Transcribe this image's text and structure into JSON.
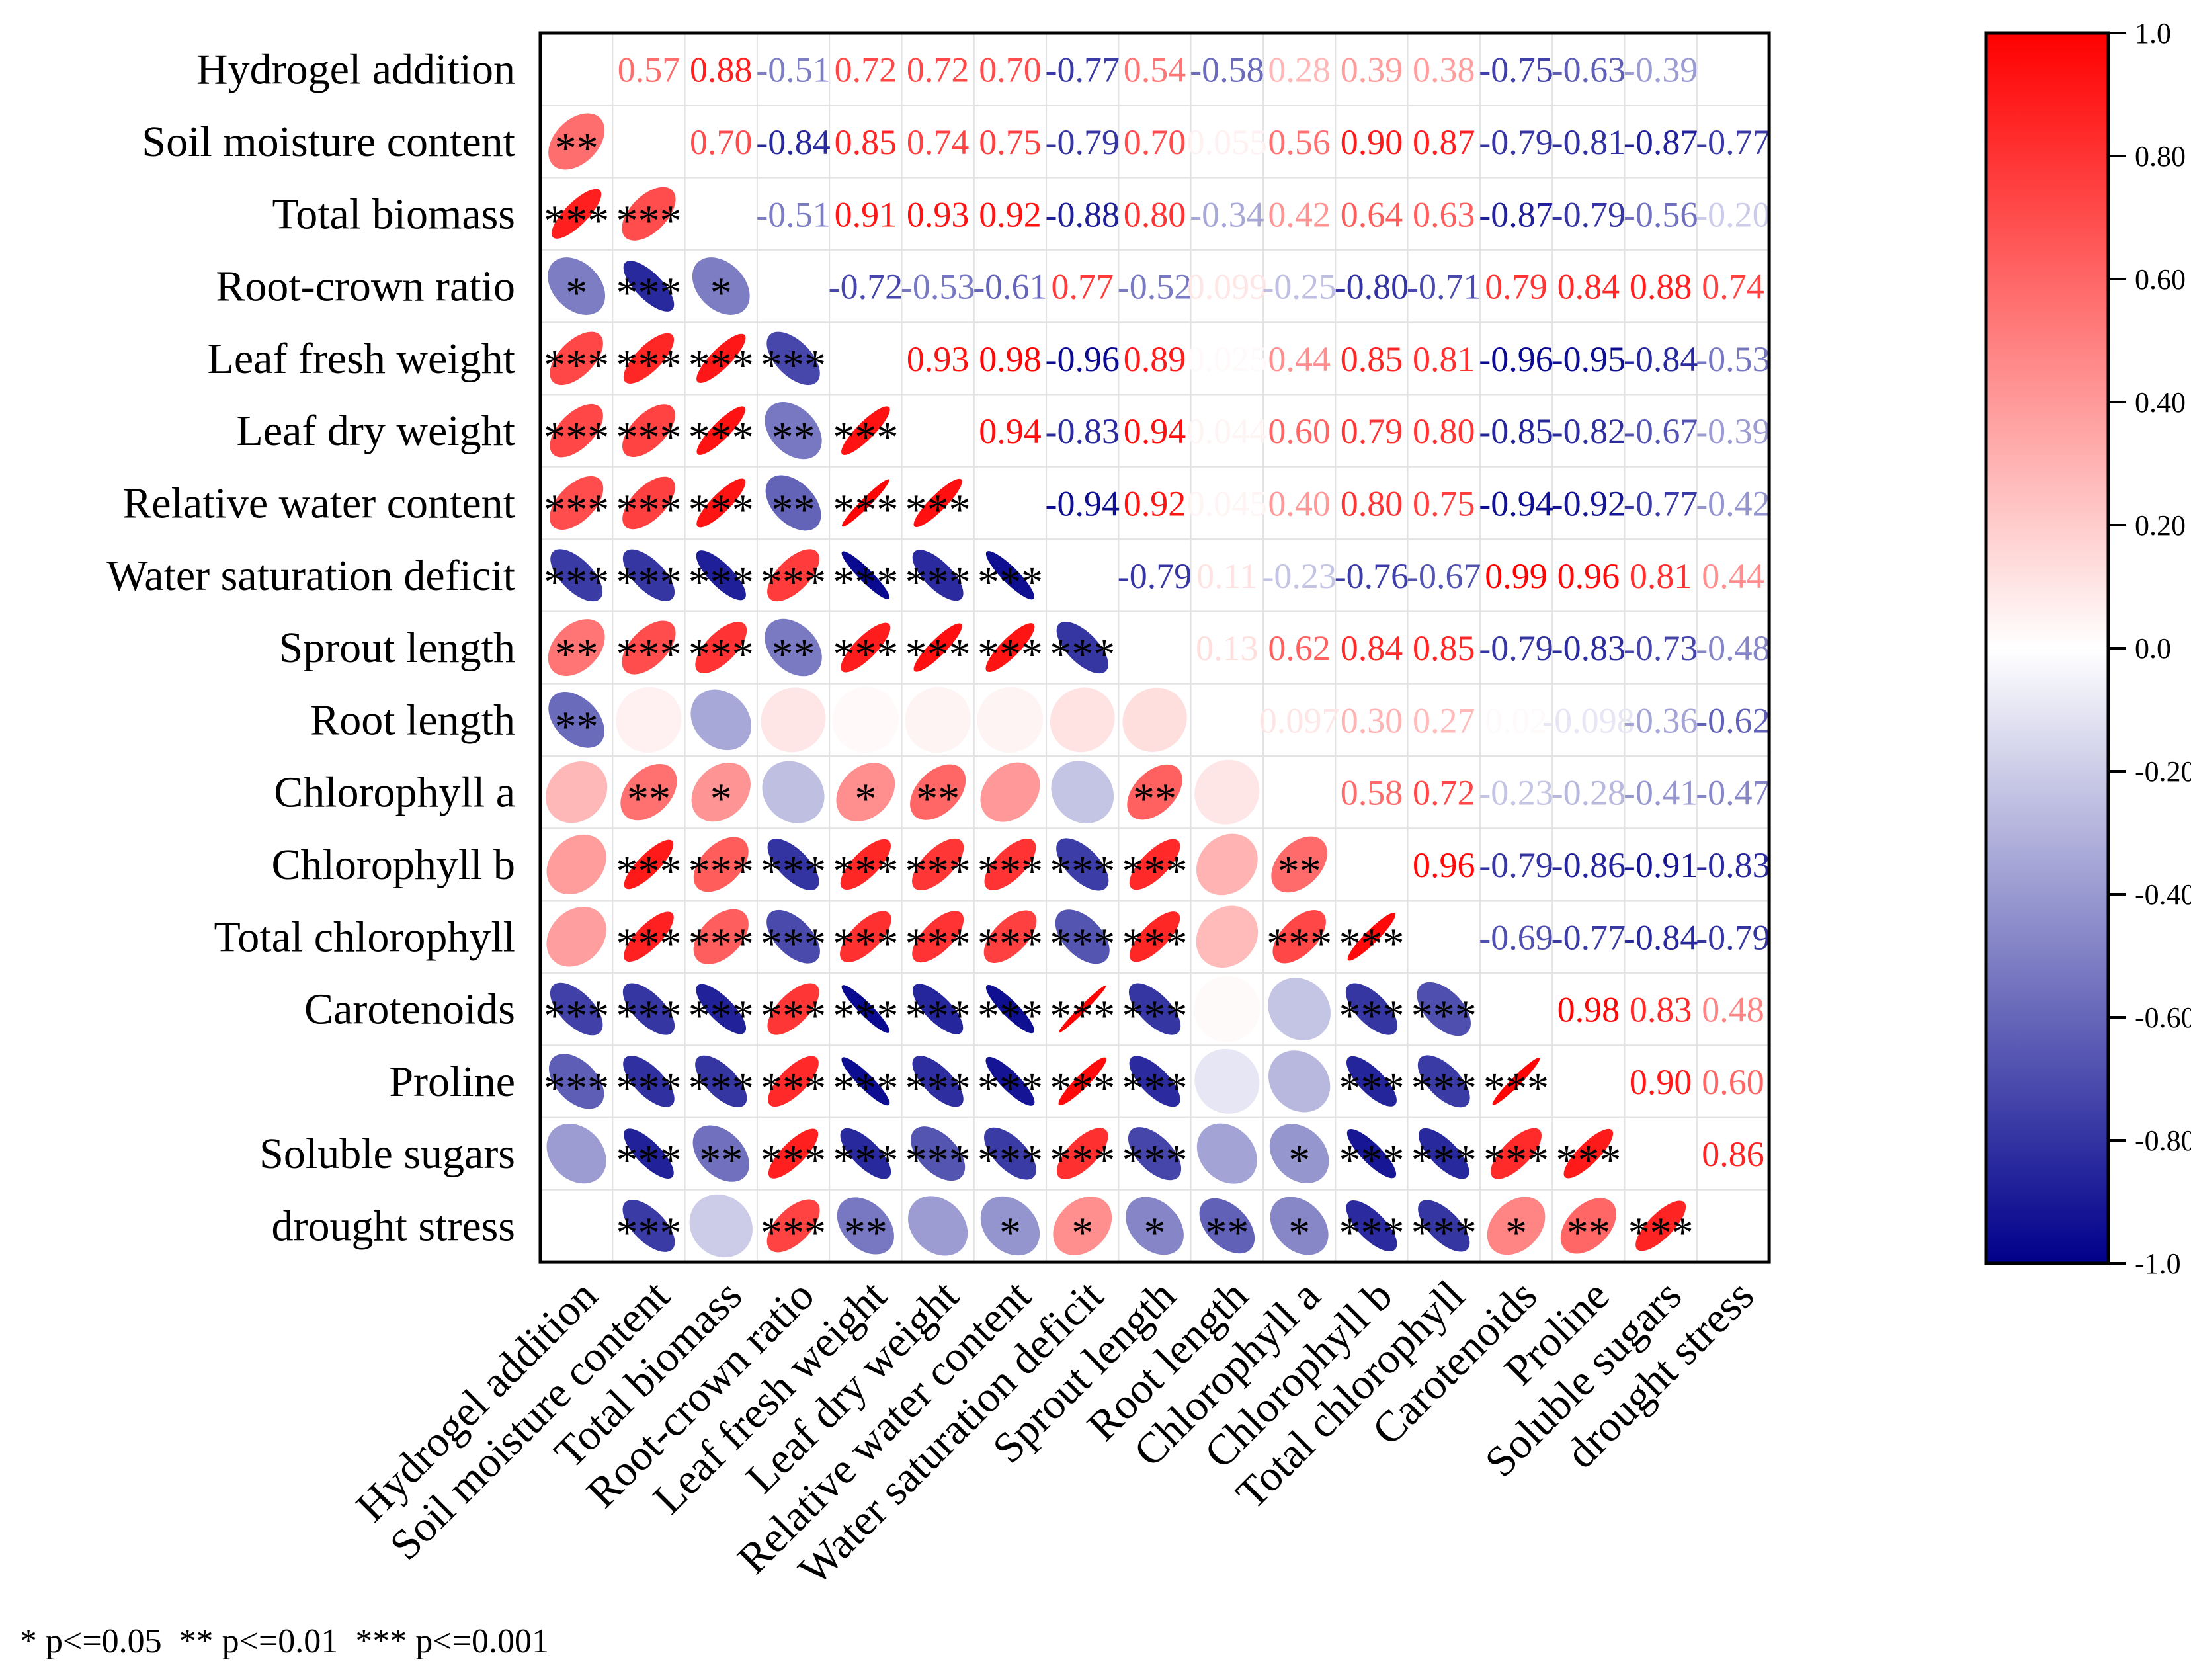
{
  "chart_data": {
    "type": "heatmap",
    "subtype": "correlation-matrix",
    "variables": [
      "Hydrogel addition",
      "Soil moisture content",
      "Total biomass",
      "Root-crown ratio",
      "Leaf fresh weight",
      "Leaf dry weight",
      "Relative water content",
      "Water saturation deficit",
      "Sprout length",
      "Root length",
      "Chlorophyll a",
      "Chlorophyll b",
      "Total chlorophyll",
      "Carotenoids",
      "Proline",
      "Soluble sugars",
      "drought stress"
    ],
    "upper_labels": [
      [
        "",
        "0.57",
        "0.88",
        "-0.51",
        "0.72",
        "0.72",
        "0.70",
        "-0.77",
        "0.54",
        "-0.58",
        "0.28",
        "0.39",
        "0.38",
        "-0.75",
        "-0.63",
        "-0.39",
        ""
      ],
      [
        "",
        "",
        "0.70",
        "-0.84",
        "0.85",
        "0.74",
        "0.75",
        "-0.79",
        "0.70",
        "0.055",
        "0.56",
        "0.90",
        "0.87",
        "-0.79",
        "-0.81",
        "-0.87",
        "-0.77"
      ],
      [
        "",
        "",
        "",
        "-0.51",
        "0.91",
        "0.93",
        "0.92",
        "-0.88",
        "0.80",
        "-0.34",
        "0.42",
        "0.64",
        "0.63",
        "-0.87",
        "-0.79",
        "-0.56",
        "-0.20"
      ],
      [
        "",
        "",
        "",
        "",
        "-0.72",
        "-0.53",
        "-0.61",
        "0.77",
        "-0.52",
        "0.099",
        "-0.25",
        "-0.80",
        "-0.71",
        "0.79",
        "0.84",
        "0.88",
        "0.74"
      ],
      [
        "",
        "",
        "",
        "",
        "",
        "0.93",
        "0.98",
        "-0.96",
        "0.89",
        "0.025",
        "0.44",
        "0.85",
        "0.81",
        "-0.96",
        "-0.95",
        "-0.84",
        "-0.53"
      ],
      [
        "",
        "",
        "",
        "",
        "",
        "",
        "0.94",
        "-0.83",
        "0.94",
        "0.044",
        "0.60",
        "0.79",
        "0.80",
        "-0.85",
        "-0.82",
        "-0.67",
        "-0.39"
      ],
      [
        "",
        "",
        "",
        "",
        "",
        "",
        "",
        "-0.94",
        "0.92",
        "0.045",
        "0.40",
        "0.80",
        "0.75",
        "-0.94",
        "-0.92",
        "-0.77",
        "-0.42"
      ],
      [
        "",
        "",
        "",
        "",
        "",
        "",
        "",
        "",
        "-0.79",
        "0.11",
        "-0.23",
        "-0.76",
        "-0.67",
        "0.99",
        "0.96",
        "0.81",
        "0.44"
      ],
      [
        "",
        "",
        "",
        "",
        "",
        "",
        "",
        "",
        "",
        "0.13",
        "0.62",
        "0.84",
        "0.85",
        "-0.79",
        "-0.83",
        "-0.73",
        "-0.48"
      ],
      [
        "",
        "",
        "",
        "",
        "",
        "",
        "",
        "",
        "",
        "",
        "0.097",
        "0.30",
        "0.27",
        "0.02",
        "-0.098",
        "-0.36",
        "-0.62"
      ],
      [
        "",
        "",
        "",
        "",
        "",
        "",
        "",
        "",
        "",
        "",
        "",
        "0.58",
        "0.72",
        "-0.23",
        "-0.28",
        "-0.41",
        "-0.47"
      ],
      [
        "",
        "",
        "",
        "",
        "",
        "",
        "",
        "",
        "",
        "",
        "",
        "",
        "0.96",
        "-0.79",
        "-0.86",
        "-0.91",
        "-0.83"
      ],
      [
        "",
        "",
        "",
        "",
        "",
        "",
        "",
        "",
        "",
        "",
        "",
        "",
        "",
        "-0.69",
        "-0.77",
        "-0.84",
        "-0.79"
      ],
      [
        "",
        "",
        "",
        "",
        "",
        "",
        "",
        "",
        "",
        "",
        "",
        "",
        "",
        "",
        "0.98",
        "0.83",
        "0.48"
      ],
      [
        "",
        "",
        "",
        "",
        "",
        "",
        "",
        "",
        "",
        "",
        "",
        "",
        "",
        "",
        "",
        "0.90",
        "0.60"
      ],
      [
        "",
        "",
        "",
        "",
        "",
        "",
        "",
        "",
        "",
        "",
        "",
        "",
        "",
        "",
        "",
        "",
        "0.86"
      ],
      [
        "",
        "",
        "",
        "",
        "",
        "",
        "",
        "",
        "",
        "",
        "",
        "",
        "",
        "",
        "",
        "",
        ""
      ]
    ],
    "significance": [
      [
        "",
        "",
        "",
        "",
        "",
        "",
        "",
        "",
        "",
        "",
        "",
        "",
        "",
        "",
        "",
        "",
        ""
      ],
      [
        "**",
        "",
        "",
        "",
        "",
        "",
        "",
        "",
        "",
        "",
        "",
        "",
        "",
        "",
        "",
        "",
        ""
      ],
      [
        "***",
        "***",
        "",
        "",
        "",
        "",
        "",
        "",
        "",
        "",
        "",
        "",
        "",
        "",
        "",
        "",
        ""
      ],
      [
        "*",
        "***",
        "*",
        "",
        "",
        "",
        "",
        "",
        "",
        "",
        "",
        "",
        "",
        "",
        "",
        "",
        ""
      ],
      [
        "***",
        "***",
        "***",
        "***",
        "",
        "",
        "",
        "",
        "",
        "",
        "",
        "",
        "",
        "",
        "",
        "",
        ""
      ],
      [
        "***",
        "***",
        "***",
        "**",
        "***",
        "",
        "",
        "",
        "",
        "",
        "",
        "",
        "",
        "",
        "",
        "",
        ""
      ],
      [
        "***",
        "***",
        "***",
        "**",
        "***",
        "***",
        "",
        "",
        "",
        "",
        "",
        "",
        "",
        "",
        "",
        "",
        ""
      ],
      [
        "***",
        "***",
        "***",
        "***",
        "***",
        "***",
        "***",
        "",
        "",
        "",
        "",
        "",
        "",
        "",
        "",
        "",
        ""
      ],
      [
        "**",
        "***",
        "***",
        "**",
        "***",
        "***",
        "***",
        "***",
        "",
        "",
        "",
        "",
        "",
        "",
        "",
        "",
        ""
      ],
      [
        "**",
        "",
        "",
        "",
        "",
        "",
        "",
        "",
        "",
        "",
        "",
        "",
        "",
        "",
        "",
        "",
        ""
      ],
      [
        "",
        "**",
        "*",
        "",
        "*",
        "**",
        "",
        "",
        "**",
        "",
        "",
        "",
        "",
        "",
        "",
        "",
        ""
      ],
      [
        "",
        "***",
        "***",
        "***",
        "***",
        "***",
        "***",
        "***",
        "***",
        "",
        "**",
        "",
        "",
        "",
        "",
        "",
        ""
      ],
      [
        "",
        "***",
        "***",
        "***",
        "***",
        "***",
        "***",
        "***",
        "***",
        "",
        "***",
        "***",
        "",
        "",
        "",
        "",
        ""
      ],
      [
        "***",
        "***",
        "***",
        "***",
        "***",
        "***",
        "***",
        "***",
        "***",
        "",
        "",
        "***",
        "***",
        "",
        "",
        "",
        ""
      ],
      [
        "***",
        "***",
        "***",
        "***",
        "***",
        "***",
        "***",
        "***",
        "***",
        "",
        "",
        "***",
        "***",
        "***",
        "",
        "",
        ""
      ],
      [
        "",
        "***",
        "**",
        "***",
        "***",
        "***",
        "***",
        "***",
        "***",
        "",
        "*",
        "***",
        "***",
        "***",
        "***",
        "",
        ""
      ],
      [
        "",
        "***",
        "",
        "***",
        "**",
        "",
        "*",
        "*",
        "*",
        "**",
        "*",
        "***",
        "***",
        "*",
        "**",
        "***",
        ""
      ]
    ],
    "color_scale": {
      "min": -1.0,
      "max": 1.0,
      "min_color": "#00008b",
      "mid_color": "#ffffff",
      "max_color": "#ff0000",
      "ticks": [
        "1.0",
        "0.80",
        "0.60",
        "0.40",
        "0.20",
        "0.0",
        "-0.20",
        "-0.40",
        "-0.60",
        "-0.80",
        "-1.0"
      ]
    },
    "lower_glyph": "ellipse",
    "upper_glyph": "value-text",
    "grid": true
  },
  "legend_note": "* p<=0.05  ** p<=0.01  *** p<=0.001",
  "colors": {
    "grid": "#e3e3e3",
    "frame": "#000000",
    "stars": "#000000",
    "label": "#000000"
  }
}
